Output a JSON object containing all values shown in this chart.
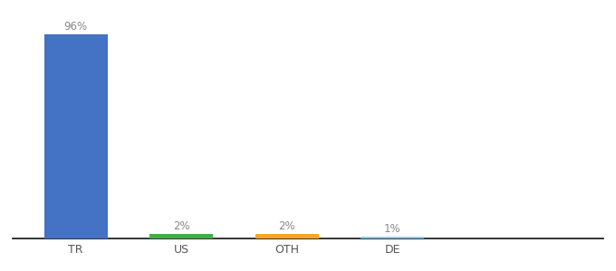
{
  "categories": [
    "TR",
    "US",
    "OTH",
    "DE"
  ],
  "values": [
    96,
    2,
    2,
    1
  ],
  "bar_colors": [
    "#4472c4",
    "#3cb043",
    "#f5a623",
    "#87ceeb"
  ],
  "labels": [
    "96%",
    "2%",
    "2%",
    "1%"
  ],
  "background_color": "#ffffff",
  "ylim": [
    0,
    103
  ],
  "bar_width": 0.6,
  "label_color": "#888888",
  "tick_color": "#555555",
  "label_fontsize": 8.5,
  "tick_fontsize": 9
}
